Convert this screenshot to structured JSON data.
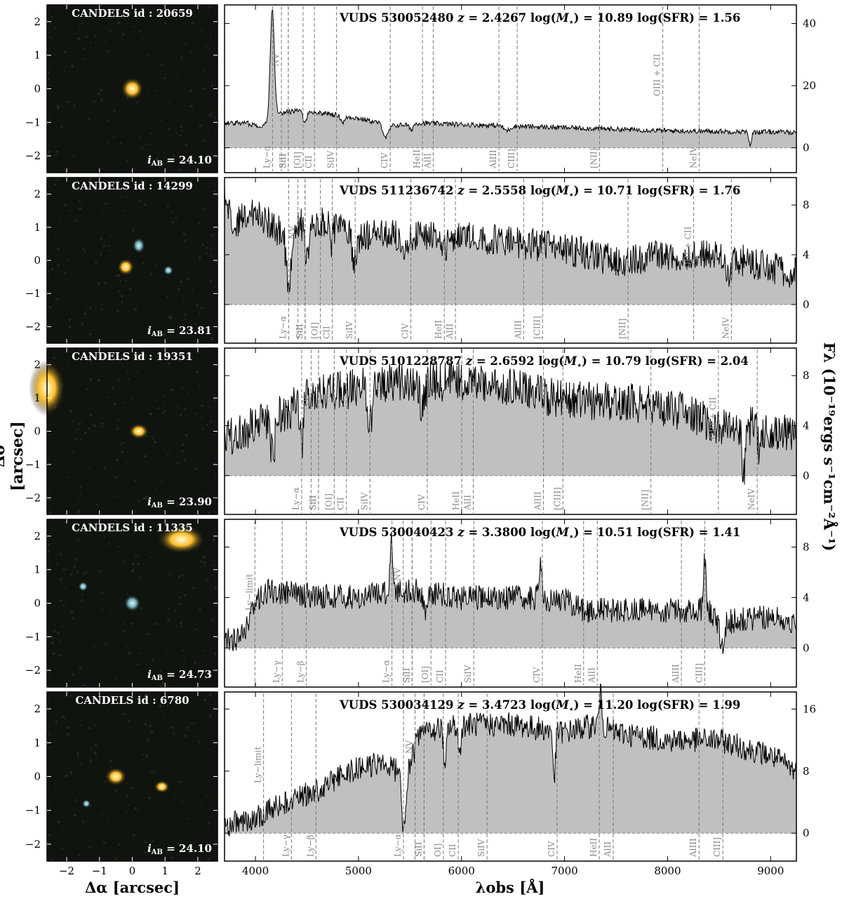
{
  "figure": {
    "left_ylabel": "Δδ [arcsec]",
    "left_xlabel": "Δα [arcsec]",
    "right_ylabel": "Fλ (10⁻¹⁹ergs s⁻¹cm⁻²Å⁻¹)",
    "right_xlabel": "λobs [Å]",
    "image_xticks": [
      "−2",
      "−1",
      "0",
      "1",
      "2"
    ],
    "image_yticks": [
      "2",
      "1",
      "0",
      "−1",
      "−2"
    ],
    "spec_xticks": [
      "4000",
      "5000",
      "6000",
      "7000",
      "8000",
      "9000"
    ],
    "colors": {
      "fill": "#c0c0c0",
      "line": "#000000",
      "guide": "#7a7a7a",
      "label": "#8a8a8a"
    }
  },
  "chart_data": [
    {
      "type": "area",
      "candels_label": "CANDELS id :  20659",
      "iab_label": "24.10",
      "header": {
        "vuds": "VUDS 530052480",
        "z": "2.4267",
        "mass": "10.89",
        "sfr": "1.56"
      },
      "redshift": 2.4267,
      "xlim": [
        3700,
        9250
      ],
      "ylim": [
        -8,
        46
      ],
      "yticks": [
        "0",
        "20",
        "40"
      ],
      "ytick_values": [
        0,
        20,
        40
      ],
      "continuum": [
        [
          3700,
          8
        ],
        [
          3900,
          8
        ],
        [
          4050,
          7
        ],
        [
          4150,
          8
        ],
        [
          4200,
          11
        ],
        [
          4400,
          12
        ],
        [
          4700,
          11
        ],
        [
          5000,
          9.5
        ],
        [
          5200,
          8
        ],
        [
          5300,
          7
        ],
        [
          5600,
          8
        ],
        [
          6000,
          7.5
        ],
        [
          7000,
          6.5
        ],
        [
          8000,
          5.5
        ],
        [
          9250,
          5
        ]
      ],
      "features": [
        [
          4163,
          36,
          20
        ],
        [
          4480,
          -3,
          20
        ],
        [
          4850,
          -2,
          20
        ],
        [
          5265,
          -4,
          25
        ],
        [
          5510,
          -2,
          18
        ],
        [
          6440,
          -1.5,
          30
        ],
        [
          8800,
          -4,
          15
        ]
      ],
      "noise": 0.8,
      "line_labels": [
        "Ly−α",
        "NV",
        "SiII",
        "[OI]",
        "CII",
        "SiIV",
        "SiII",
        "CIV",
        "HeII",
        "AlII",
        "AlIII",
        "CIII]",
        "[NII]",
        "NeIV",
        "OIII + CII"
      ]
    },
    {
      "type": "area",
      "candels_label": "CANDELS id :  14299",
      "iab_label": "23.81",
      "header": {
        "vuds": "VUDS 511236742",
        "z": "2.5558",
        "mass": "10.71",
        "sfr": "1.76"
      },
      "redshift": 2.5558,
      "xlim": [
        3700,
        9250
      ],
      "ylim": [
        -3.1,
        10.2
      ],
      "yticks": [
        "0",
        "4",
        "8"
      ],
      "ytick_values": [
        0,
        4,
        8
      ],
      "continuum": [
        [
          3700,
          8.5
        ],
        [
          3800,
          6.5
        ],
        [
          4000,
          7.5
        ],
        [
          4200,
          6
        ],
        [
          4400,
          6.5
        ],
        [
          4700,
          6.5
        ],
        [
          5000,
          5.5
        ],
        [
          5500,
          5.5
        ],
        [
          6000,
          5.5
        ],
        [
          6500,
          5
        ],
        [
          7000,
          4.5
        ],
        [
          7500,
          3.5
        ],
        [
          8000,
          4
        ],
        [
          8500,
          4
        ],
        [
          9000,
          3
        ],
        [
          9250,
          2.5
        ]
      ],
      "features": [
        [
          4323,
          -5,
          25
        ],
        [
          4500,
          -3,
          20
        ],
        [
          4737,
          -1.5,
          15
        ],
        [
          4960,
          -2,
          20
        ],
        [
          5440,
          -2,
          20
        ],
        [
          5830,
          -1,
          25
        ],
        [
          8600,
          -2,
          20
        ]
      ],
      "noise": 1.3,
      "line_labels": [
        "Ly−α",
        "NV",
        "SiII",
        "[OI]",
        "CII",
        "SiIV",
        "SiII",
        "CIV",
        "HeII",
        "AlII",
        "AlIII",
        "[CIII]",
        "[NII]",
        "NeIV",
        "OIII + CII"
      ]
    },
    {
      "type": "area",
      "candels_label": "CANDELS id :  19351",
      "iab_label": "23.90",
      "header": {
        "vuds": "VUDS 5101228787",
        "z": "2.6592",
        "mass": "10.79",
        "sfr": "2.04"
      },
      "redshift": 2.6592,
      "xlim": [
        3700,
        9250
      ],
      "ylim": [
        -3.1,
        10.2
      ],
      "yticks": [
        "0",
        "4",
        "8"
      ],
      "ytick_values": [
        0,
        4,
        8
      ],
      "continuum": [
        [
          3700,
          3
        ],
        [
          4000,
          4
        ],
        [
          4300,
          5
        ],
        [
          4500,
          6.5
        ],
        [
          5000,
          7
        ],
        [
          5300,
          7.5
        ],
        [
          5600,
          7.5
        ],
        [
          6000,
          7.5
        ],
        [
          6500,
          7
        ],
        [
          7000,
          6
        ],
        [
          7500,
          6
        ],
        [
          8000,
          5.5
        ],
        [
          8500,
          4
        ],
        [
          8900,
          4
        ],
        [
          9250,
          3
        ]
      ],
      "features": [
        [
          4169,
          -3,
          20
        ],
        [
          4448,
          -4,
          15
        ],
        [
          5112,
          -3,
          20
        ],
        [
          5620,
          -2,
          25
        ],
        [
          8740,
          -4,
          15
        ],
        [
          8893,
          -2,
          20
        ]
      ],
      "noise": 1.6,
      "line_labels": [
        "Ly−α",
        "NV",
        "SiII",
        "[OI]",
        "CII",
        "SiIV",
        "SiII",
        "CIV",
        "HeII",
        "AlII",
        "AlIII",
        "[CIII]",
        "[NII]",
        "NeIV",
        "OIII + CII"
      ]
    },
    {
      "type": "area",
      "candels_label": "CANDELS id :  11335",
      "iab_label": "24.73",
      "header": {
        "vuds": "VUDS 530040423",
        "z": "3.3800",
        "mass": "10.51",
        "sfr": "1.41"
      },
      "redshift": 3.38,
      "xlim": [
        3700,
        9250
      ],
      "ylim": [
        -3.1,
        10.2
      ],
      "yticks": [
        "0",
        "4",
        "8"
      ],
      "ytick_values": [
        0,
        4,
        8
      ],
      "continuum": [
        [
          3700,
          0.5
        ],
        [
          3900,
          1
        ],
        [
          3960,
          3
        ],
        [
          4100,
          4.5
        ],
        [
          4500,
          4.2
        ],
        [
          5000,
          4
        ],
        [
          5300,
          4.5
        ],
        [
          5600,
          4.5
        ],
        [
          6000,
          4
        ],
        [
          6500,
          4
        ],
        [
          7000,
          3.8
        ],
        [
          7200,
          3
        ],
        [
          7500,
          3
        ],
        [
          8000,
          3
        ],
        [
          8400,
          3
        ],
        [
          8500,
          2
        ],
        [
          9000,
          2.5
        ],
        [
          9250,
          2
        ]
      ],
      "features": [
        [
          5320,
          4.5,
          12
        ],
        [
          6770,
          3,
          15
        ],
        [
          8360,
          4,
          12
        ],
        [
          8530,
          -2,
          20
        ],
        [
          5650,
          -1.5,
          20
        ]
      ],
      "noise": 1.0,
      "line_labels": [
        "Ly−limit",
        "Ly−γ",
        "Ly−β",
        "Ly−α",
        "NV",
        "SiII",
        "[OI]",
        "CII",
        "SiIV",
        "SiII",
        "CIV",
        "HeII",
        "AlII",
        "AlIII",
        "CIII]"
      ]
    },
    {
      "type": "area",
      "candels_label": "CANDELS id :  6780",
      "iab_label": "24.10",
      "header": {
        "vuds": "VUDS 530034129",
        "z": "3.4723",
        "mass": "11.20",
        "sfr": "1.99"
      },
      "redshift": 3.4723,
      "xlim": [
        3700,
        9250
      ],
      "ylim": [
        -3.6,
        18.2
      ],
      "yticks": [
        "0",
        "8",
        "16"
      ],
      "ytick_values": [
        0,
        8,
        16
      ],
      "continuum": [
        [
          3700,
          1
        ],
        [
          4000,
          2
        ],
        [
          4300,
          4
        ],
        [
          4600,
          5.5
        ],
        [
          4900,
          8
        ],
        [
          5200,
          9
        ],
        [
          5400,
          8
        ],
        [
          5500,
          9
        ],
        [
          5600,
          13
        ],
        [
          6000,
          14
        ],
        [
          6500,
          14
        ],
        [
          7000,
          13
        ],
        [
          7300,
          14
        ],
        [
          7500,
          13
        ],
        [
          8000,
          12
        ],
        [
          8500,
          12
        ],
        [
          9000,
          10
        ],
        [
          9250,
          8
        ]
      ],
      "features": [
        [
          5440,
          -8,
          20
        ],
        [
          5840,
          -6,
          12
        ],
        [
          5980,
          -4,
          12
        ],
        [
          6900,
          -6,
          12
        ],
        [
          7350,
          4,
          15
        ]
      ],
      "noise": 1.6,
      "line_labels": [
        "Ly−limit",
        "Ly−γ",
        "Ly−β",
        "Ly−α",
        "NV",
        "SiII",
        "OI]",
        "CII",
        "SiIV",
        "SiII",
        "CIV",
        "HeII",
        "AlII",
        "AlIII",
        "CIII]"
      ]
    }
  ]
}
